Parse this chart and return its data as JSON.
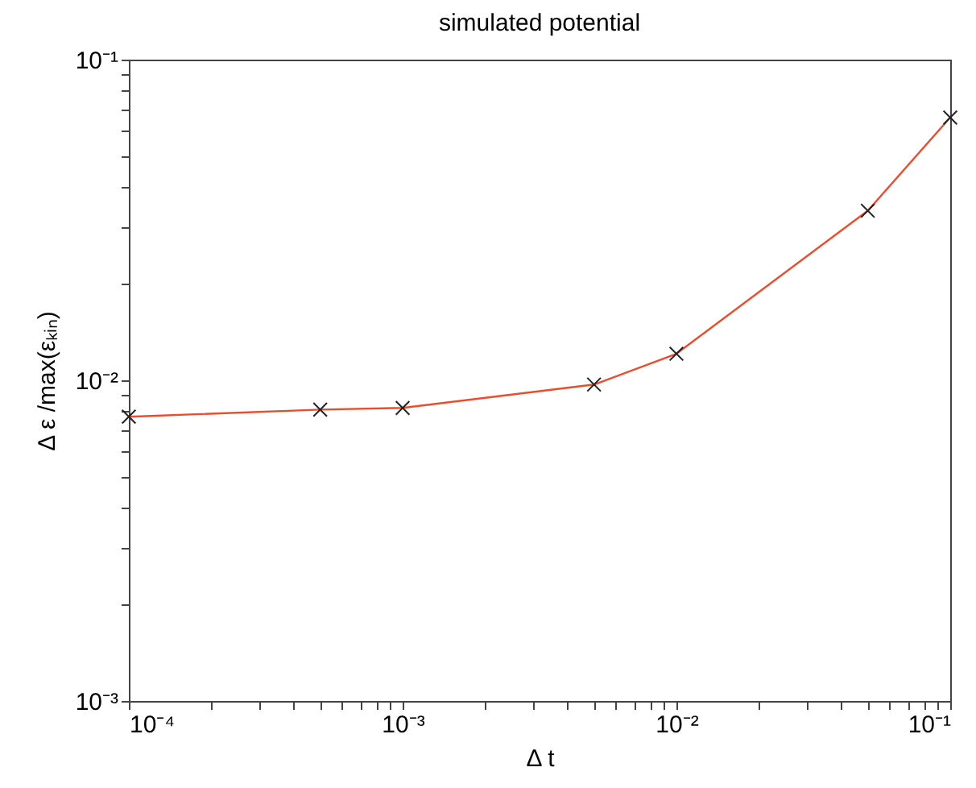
{
  "chart_data": {
    "type": "line",
    "title": "simulated potential",
    "xlabel": "Δ t",
    "ylabel": "Δ ε /max(εₖᵢₙ)",
    "log": "xy",
    "marker": "cross",
    "grid": false,
    "x": [
      0.0001,
      0.0005,
      0.001,
      0.005,
      0.01,
      0.05,
      0.1
    ],
    "series": [
      {
        "color": "#ee4b2b",
        "values": [
          0.0077,
          0.0081,
          0.0082,
          0.0097,
          0.0121,
          0.0338,
          0.066
        ]
      }
    ],
    "xlim": [
      0.0001,
      0.1
    ],
    "ylim": [
      0.001,
      0.1
    ],
    "xticks": [
      {
        "value": 0.0001,
        "label": "10⁻⁴"
      },
      {
        "value": 0.0002,
        "label": null
      },
      {
        "value": 0.0003,
        "label": null
      },
      {
        "value": 0.0004,
        "label": null
      },
      {
        "value": 0.0005,
        "label": null
      },
      {
        "value": 0.0006,
        "label": null
      },
      {
        "value": 0.0007,
        "label": null
      },
      {
        "value": 0.0008,
        "label": null
      },
      {
        "value": 0.0009,
        "label": null
      },
      {
        "value": 0.001,
        "label": "10⁻³"
      },
      {
        "value": 0.002,
        "label": null
      },
      {
        "value": 0.003,
        "label": null
      },
      {
        "value": 0.004,
        "label": null
      },
      {
        "value": 0.005,
        "label": null
      },
      {
        "value": 0.006,
        "label": null
      },
      {
        "value": 0.007,
        "label": null
      },
      {
        "value": 0.008,
        "label": null
      },
      {
        "value": 0.009,
        "label": null
      },
      {
        "value": 0.01,
        "label": "10⁻²"
      },
      {
        "value": 0.02,
        "label": null
      },
      {
        "value": 0.03,
        "label": null
      },
      {
        "value": 0.04,
        "label": null
      },
      {
        "value": 0.05,
        "label": null
      },
      {
        "value": 0.06,
        "label": null
      },
      {
        "value": 0.07,
        "label": null
      },
      {
        "value": 0.08,
        "label": null
      },
      {
        "value": 0.09,
        "label": null
      },
      {
        "value": 0.1,
        "label": "10⁻¹"
      }
    ],
    "yticks": [
      {
        "value": 0.001,
        "label": "10⁻³"
      },
      {
        "value": 0.002,
        "label": null
      },
      {
        "value": 0.003,
        "label": null
      },
      {
        "value": 0.004,
        "label": null
      },
      {
        "value": 0.005,
        "label": null
      },
      {
        "value": 0.006,
        "label": null
      },
      {
        "value": 0.007,
        "label": null
      },
      {
        "value": 0.008,
        "label": null
      },
      {
        "value": 0.009,
        "label": null
      },
      {
        "value": 0.01,
        "label": "10⁻²"
      },
      {
        "value": 0.02,
        "label": null
      },
      {
        "value": 0.03,
        "label": null
      },
      {
        "value": 0.04,
        "label": null
      },
      {
        "value": 0.05,
        "label": null
      },
      {
        "value": 0.06,
        "label": null
      },
      {
        "value": 0.07,
        "label": null
      },
      {
        "value": 0.08,
        "label": null
      },
      {
        "value": 0.09,
        "label": null
      },
      {
        "value": 0.1,
        "label": "10⁻¹"
      }
    ]
  }
}
